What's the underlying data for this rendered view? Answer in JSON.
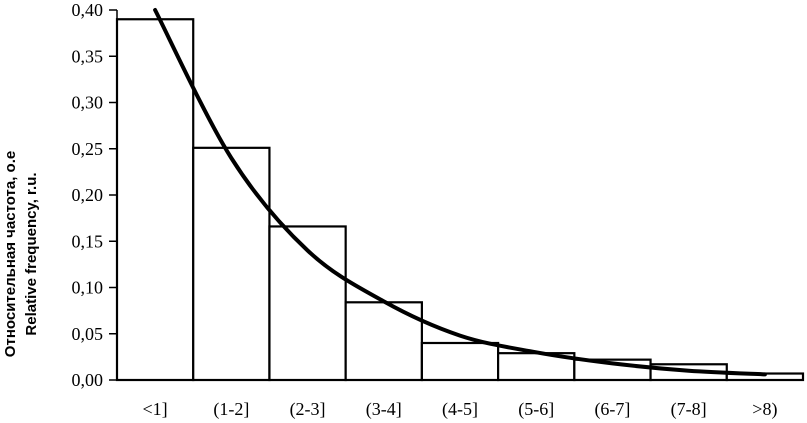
{
  "chart_data": {
    "type": "bar",
    "categories": [
      "<1]",
      "(1-2]",
      "(2-3]",
      "(3-4]",
      "(4-5]",
      "(5-6]",
      "(6-7]",
      "(7-8]",
      ">8)"
    ],
    "values": [
      0.39,
      0.251,
      0.166,
      0.084,
      0.04,
      0.029,
      0.022,
      0.017,
      0.007
    ],
    "curve": {
      "x": [
        0.5,
        1.5,
        2.5,
        3.5,
        4.5,
        5.5,
        6.5,
        7.5,
        8.5
      ],
      "y": [
        0.4,
        0.24,
        0.14,
        0.085,
        0.048,
        0.03,
        0.018,
        0.01,
        0.006
      ]
    },
    "ylim": [
      0,
      0.4
    ],
    "yticks": [
      "0,00",
      "0,05",
      "0,10",
      "0,15",
      "0,20",
      "0,25",
      "0,30",
      "0,35",
      "0,40"
    ],
    "ylabel_line1": "Относительная частота, о.е",
    "ylabel_line2": "Relative frequency, r.u.",
    "xlabel": "",
    "title": "",
    "grid": false,
    "bar_fill": "#ffffff",
    "bar_stroke": "#000000",
    "curve_color": "#000000"
  }
}
